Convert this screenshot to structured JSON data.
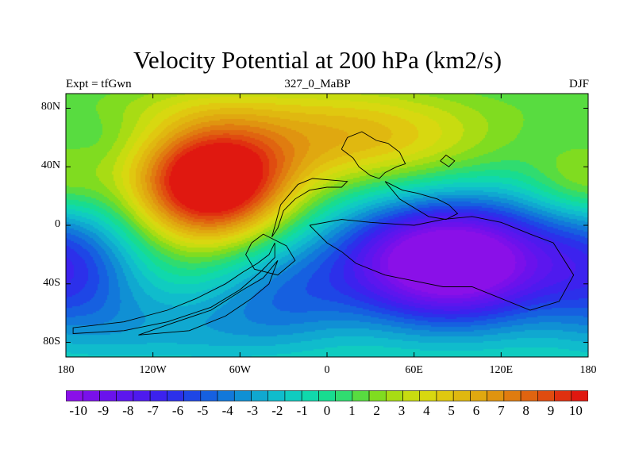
{
  "title": "Velocity Potential at 200 hPa (km2/s)",
  "subtitle_left": "Expt = tfGwn",
  "subtitle_center": "327_0_MaBP",
  "subtitle_right": "DJF",
  "map": {
    "lon_range": [
      -180,
      180
    ],
    "lat_range": [
      -90,
      90
    ],
    "y_ticks": [
      {
        "value": 80,
        "label": "80N"
      },
      {
        "value": 40,
        "label": "40N"
      },
      {
        "value": 0,
        "label": "0"
      },
      {
        "value": -40,
        "label": "40S"
      },
      {
        "value": -80,
        "label": "80S"
      }
    ],
    "x_ticks": [
      {
        "value": -180,
        "label": "180"
      },
      {
        "value": -120,
        "label": "120W"
      },
      {
        "value": -60,
        "label": "60W"
      },
      {
        "value": 0,
        "label": "0"
      },
      {
        "value": 60,
        "label": "60E"
      },
      {
        "value": 120,
        "label": "120E"
      },
      {
        "value": 180,
        "label": "180"
      }
    ],
    "field_features": [
      {
        "kind": "max",
        "lon": -80,
        "lat": 30,
        "value": 10
      },
      {
        "kind": "min",
        "lon": 85,
        "lat": -22,
        "value": -10
      }
    ]
  },
  "colorbar": {
    "min": -10.5,
    "max": 10.5,
    "step": 0.5,
    "labels": [
      "-10",
      "-9",
      "-8",
      "-7",
      "-6",
      "-5",
      "-4",
      "-3",
      "-2",
      "-1",
      "0",
      "1",
      "2",
      "3",
      "4",
      "5",
      "6",
      "7",
      "8",
      "9",
      "10"
    ],
    "colors": [
      "#8a10e8",
      "#7a10ea",
      "#6a12ec",
      "#5c16ee",
      "#4e1aee",
      "#3c22ee",
      "#2c30ea",
      "#1e46e6",
      "#1660e0",
      "#1278da",
      "#1090d4",
      "#10a8d0",
      "#10bccc",
      "#10ccc0",
      "#10d8ac",
      "#18dc90",
      "#30dc70",
      "#58dc40",
      "#80dc20",
      "#a8dc14",
      "#c8dc10",
      "#d8d810",
      "#e0c810",
      "#e0b810",
      "#e0a810",
      "#e09410",
      "#e07c10",
      "#e06410",
      "#e04c10",
      "#e03010",
      "#e01810"
    ]
  }
}
